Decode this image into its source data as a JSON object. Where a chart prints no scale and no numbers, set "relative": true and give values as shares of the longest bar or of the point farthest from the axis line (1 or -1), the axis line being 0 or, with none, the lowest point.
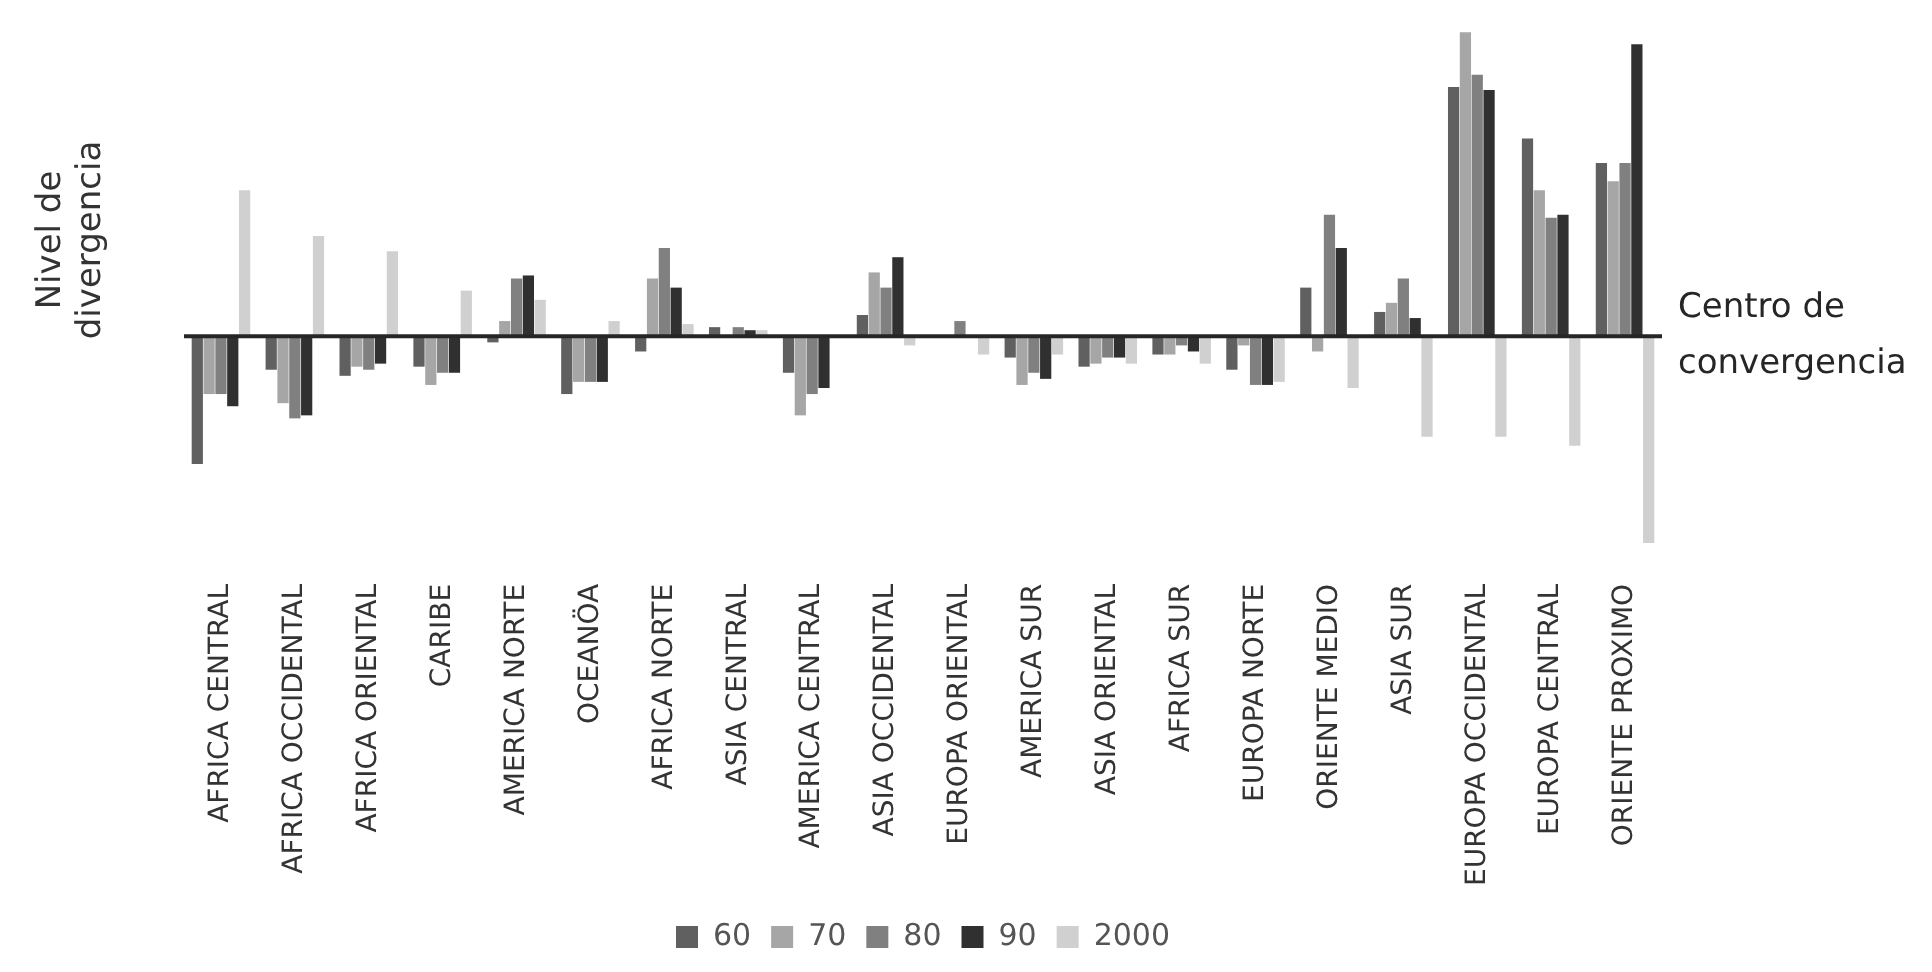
{
  "chart_data": {
    "type": "bar",
    "relative": true,
    "ylabel": "Nivel de divergencia",
    "legend": "bottom",
    "grid": false,
    "categories": [
      "AFRICA CENTRAL",
      "AFRICA OCCIDENTAL",
      "AFRICA ORIENTAL",
      "CARIBE",
      "AMERICA NORTE",
      "OCEANÖA",
      "AFRICA NORTE",
      "ASIA CENTRAL",
      "AMERICA CENTRAL",
      "ASIA OCCIDENTAL",
      "EUROPA ORIENTAL",
      "AMERICA SUR",
      "ASIA ORIENTAL",
      "AFRICA SUR",
      "EUROPA NORTE",
      "ORIENTE MEDIO",
      "ASIA SUR",
      "EUROPA OCCIDENTAL",
      "EUROPA CENTRAL",
      "ORIENTE PROXIMO"
    ],
    "series": [
      {
        "name": "60",
        "color": "#606060",
        "values": [
          -0.42,
          -0.11,
          -0.13,
          -0.1,
          -0.02,
          -0.19,
          -0.05,
          0.03,
          -0.12,
          0.07,
          null,
          -0.07,
          -0.1,
          -0.06,
          -0.11,
          0.16,
          0.08,
          0.82,
          0.65,
          0.57
        ]
      },
      {
        "name": "70",
        "color": "#a6a6a6",
        "values": [
          -0.19,
          -0.22,
          -0.1,
          -0.16,
          0.05,
          -0.15,
          0.19,
          0.0,
          -0.26,
          0.21,
          null,
          -0.16,
          -0.09,
          -0.06,
          -0.03,
          -0.05,
          0.11,
          1,
          0.48,
          0.51
        ]
      },
      {
        "name": "80",
        "color": "#808080",
        "values": [
          -0.19,
          -0.27,
          -0.11,
          -0.12,
          0.19,
          -0.15,
          0.29,
          0.03,
          -0.19,
          0.16,
          0.05,
          -0.12,
          -0.07,
          -0.03,
          -0.16,
          0.4,
          0.19,
          0.86,
          0.39,
          0.57
        ]
      },
      {
        "name": "90",
        "color": "#303030",
        "values": [
          -0.23,
          -0.26,
          -0.09,
          -0.12,
          0.2,
          -0.15,
          0.16,
          0.02,
          -0.17,
          0.26,
          0.0,
          -0.14,
          -0.07,
          -0.05,
          -0.16,
          0.29,
          0.06,
          0.81,
          0.4,
          0.96
        ]
      },
      {
        "name": "2000",
        "color": "#d0d0d0",
        "values": [
          0.48,
          0.33,
          0.28,
          0.15,
          0.12,
          0.05,
          0.04,
          0.02,
          0,
          -0.03,
          -0.06,
          -0.06,
          -0.09,
          -0.09,
          -0.15,
          -0.17,
          -0.33,
          -0.33,
          -0.36,
          -0.68
        ]
      }
    ],
    "ref_lines": [
      {
        "axis": "y",
        "value": 0,
        "label": "Centro de convergencia",
        "color": "#262626"
      }
    ]
  }
}
